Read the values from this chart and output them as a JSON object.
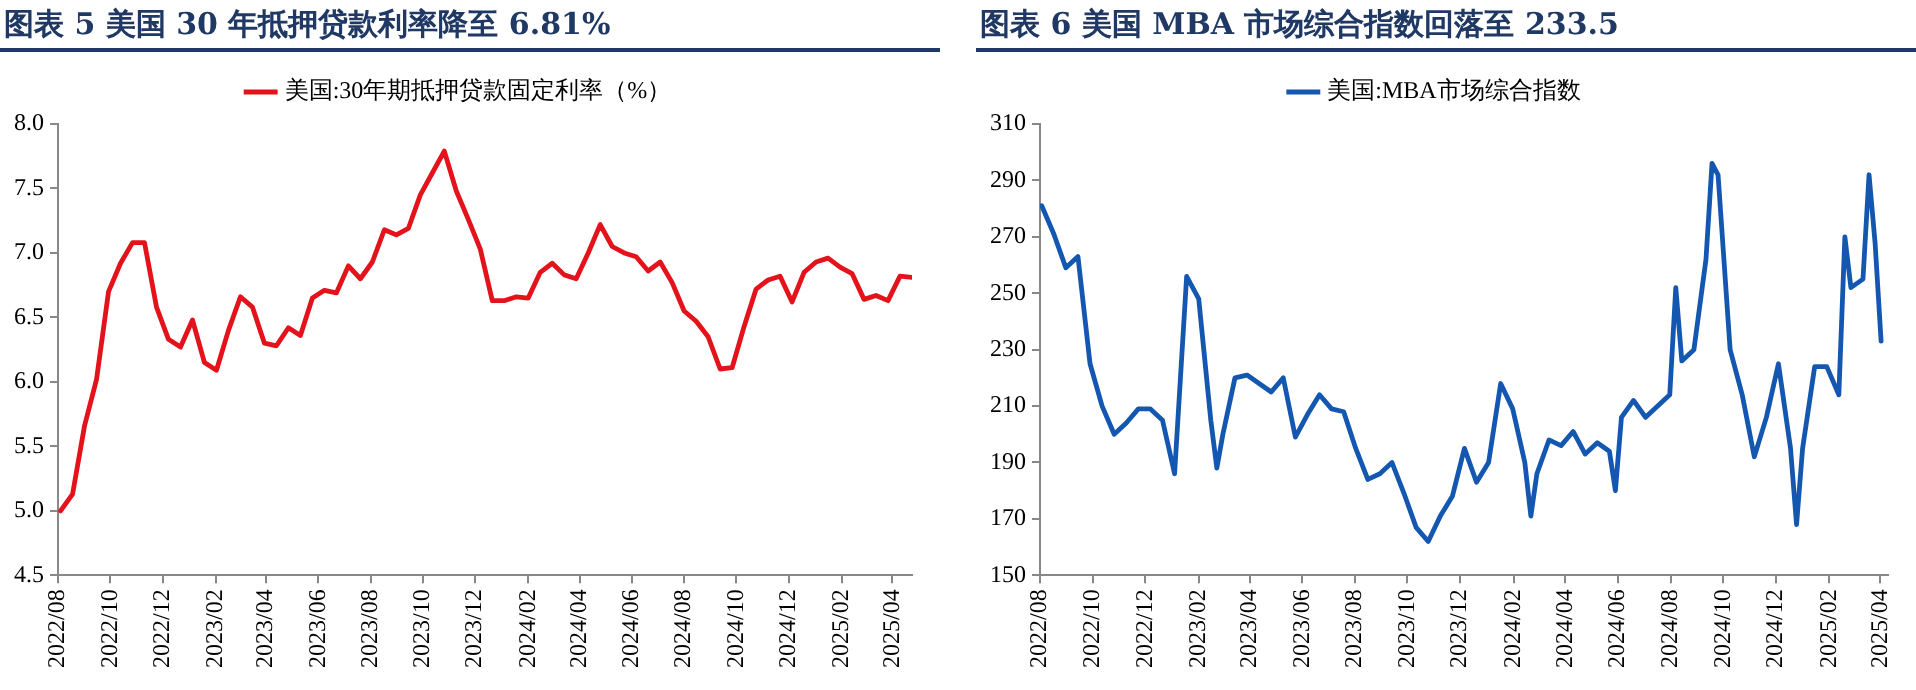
{
  "chart_data": [
    {
      "type": "line",
      "title": "图表 5    美国 30 年抵押贷款利率降至 6.81%",
      "x": [
        "2022-08-04",
        "2022-08-18",
        "2022-09-01",
        "2022-09-15",
        "2022-09-29",
        "2022-10-13",
        "2022-10-27",
        "2022-11-10",
        "2022-11-24",
        "2022-12-08",
        "2022-12-22",
        "2023-01-05",
        "2023-01-19",
        "2023-02-02",
        "2023-02-16",
        "2023-03-02",
        "2023-03-16",
        "2023-03-30",
        "2023-04-13",
        "2023-04-27",
        "2023-05-11",
        "2023-05-25",
        "2023-06-08",
        "2023-06-22",
        "2023-07-06",
        "2023-07-20",
        "2023-08-03",
        "2023-08-17",
        "2023-08-31",
        "2023-09-14",
        "2023-09-28",
        "2023-10-12",
        "2023-10-26",
        "2023-11-09",
        "2023-11-23",
        "2023-12-07",
        "2023-12-21",
        "2024-01-04",
        "2024-01-18",
        "2024-02-01",
        "2024-02-15",
        "2024-02-29",
        "2024-03-14",
        "2024-03-28",
        "2024-04-11",
        "2024-04-25",
        "2024-05-09",
        "2024-05-23",
        "2024-06-06",
        "2024-06-20",
        "2024-07-04",
        "2024-07-18",
        "2024-08-01",
        "2024-08-15",
        "2024-08-29",
        "2024-09-12",
        "2024-09-26",
        "2024-10-10",
        "2024-10-24",
        "2024-11-07",
        "2024-11-21",
        "2024-12-05",
        "2024-12-19",
        "2025-01-02",
        "2025-01-16",
        "2025-01-30",
        "2025-02-13",
        "2025-02-27",
        "2025-03-13",
        "2025-03-27",
        "2025-04-10",
        "2025-04-24"
      ],
      "series": [
        {
          "name": "美国:30年期抵押贷款固定利率（%）",
          "color": "#e3121b",
          "values": [
            5.0,
            5.13,
            5.66,
            6.02,
            6.7,
            6.92,
            7.08,
            7.08,
            6.58,
            6.33,
            6.27,
            6.48,
            6.15,
            6.09,
            6.4,
            6.66,
            6.58,
            6.3,
            6.28,
            6.42,
            6.36,
            6.65,
            6.71,
            6.69,
            6.9,
            6.8,
            6.93,
            7.18,
            7.14,
            7.19,
            7.45,
            7.62,
            7.79,
            7.48,
            7.26,
            7.03,
            6.63,
            6.63,
            6.66,
            6.65,
            6.85,
            6.92,
            6.83,
            6.8,
            7.0,
            7.22,
            7.05,
            7.0,
            6.97,
            6.86,
            6.93,
            6.77,
            6.55,
            6.47,
            6.35,
            6.1,
            6.11,
            6.43,
            6.72,
            6.79,
            6.82,
            6.62,
            6.85,
            6.93,
            6.96,
            6.89,
            6.84,
            6.64,
            6.67,
            6.63,
            6.82,
            6.81
          ]
        }
      ],
      "xlim": [
        "2022-08-01",
        "2025-04-24"
      ],
      "xticks": [
        {
          "value": "2022-08",
          "label": "2022/08"
        },
        {
          "value": "2022-10",
          "label": "2022/10"
        },
        {
          "value": "2022-12",
          "label": "2022/12"
        },
        {
          "value": "2023-02",
          "label": "2023/02"
        },
        {
          "value": "2023-04",
          "label": "2023/04"
        },
        {
          "value": "2023-06",
          "label": "2023/06"
        },
        {
          "value": "2023-08",
          "label": "2023/08"
        },
        {
          "value": "2023-10",
          "label": "2023/10"
        },
        {
          "value": "2023-12",
          "label": "2023/12"
        },
        {
          "value": "2024-02",
          "label": "2024/02"
        },
        {
          "value": "2024-04",
          "label": "2024/04"
        },
        {
          "value": "2024-06",
          "label": "2024/06"
        },
        {
          "value": "2024-08",
          "label": "2024/08"
        },
        {
          "value": "2024-10",
          "label": "2024/10"
        },
        {
          "value": "2024-12",
          "label": "2024/12"
        },
        {
          "value": "2025-02",
          "label": "2025/02"
        },
        {
          "value": "2025-04",
          "label": "2025/04"
        }
      ],
      "ylim": [
        4.5,
        8.0
      ],
      "yticks": [
        {
          "value": 4.5,
          "label": "4.5"
        },
        {
          "value": 5,
          "label": "5.0"
        },
        {
          "value": 5.5,
          "label": "5.5"
        },
        {
          "value": 6,
          "label": "6.0"
        },
        {
          "value": 6.5,
          "label": "6.5"
        },
        {
          "value": 7,
          "label": "7.0"
        },
        {
          "value": 7.5,
          "label": "7.5"
        },
        {
          "value": 8,
          "label": "8.0"
        }
      ],
      "grid": false,
      "legend": "top",
      "marker": "none",
      "line_style": "solid"
    },
    {
      "type": "line",
      "title": "图表 6    美国 MBA 市场综合指数回落至 233.5",
      "x": [
        "2022-08-03",
        "2022-08-17",
        "2022-08-31",
        "2022-09-14",
        "2022-09-28",
        "2022-10-12",
        "2022-10-26",
        "2022-11-09",
        "2022-11-23",
        "2022-12-07",
        "2022-12-21",
        "2023-01-04",
        "2023-01-18",
        "2023-02-01",
        "2023-02-15",
        "2023-02-22",
        "2023-03-01",
        "2023-03-15",
        "2023-03-29",
        "2023-04-12",
        "2023-04-26",
        "2023-05-10",
        "2023-05-24",
        "2023-06-07",
        "2023-06-21",
        "2023-07-05",
        "2023-07-19",
        "2023-08-02",
        "2023-08-16",
        "2023-08-30",
        "2023-09-13",
        "2023-09-27",
        "2023-10-11",
        "2023-10-25",
        "2023-11-08",
        "2023-11-22",
        "2023-12-06",
        "2023-12-20",
        "2024-01-03",
        "2024-01-17",
        "2024-01-31",
        "2024-02-14",
        "2024-02-21",
        "2024-02-28",
        "2024-03-13",
        "2024-03-27",
        "2024-04-10",
        "2024-04-24",
        "2024-05-08",
        "2024-05-22",
        "2024-05-29",
        "2024-06-05",
        "2024-06-19",
        "2024-07-03",
        "2024-07-17",
        "2024-07-31",
        "2024-08-07",
        "2024-08-14",
        "2024-08-28",
        "2024-09-11",
        "2024-09-18",
        "2024-09-25",
        "2024-10-09",
        "2024-10-23",
        "2024-11-06",
        "2024-11-20",
        "2024-12-04",
        "2024-12-18",
        "2024-12-25",
        "2025-01-01",
        "2025-01-15",
        "2025-01-29",
        "2025-02-12",
        "2025-02-19",
        "2025-02-26",
        "2025-03-12",
        "2025-03-19",
        "2025-03-26",
        "2025-04-02"
      ],
      "series": [
        {
          "name": "美国:MBA市场综合指数",
          "color": "#1457b0",
          "values": [
            281,
            271,
            259,
            263,
            225,
            210,
            200,
            204,
            209,
            209,
            205,
            186,
            256,
            248,
            205,
            188,
            200,
            220,
            221,
            218,
            215,
            220,
            199,
            207,
            214,
            209,
            208,
            195,
            184,
            186,
            190,
            179,
            167,
            162,
            171,
            178,
            195,
            183,
            190,
            218,
            209,
            190,
            171,
            186,
            198,
            196,
            201,
            193,
            197,
            194,
            180,
            206,
            212,
            206,
            210,
            214,
            252,
            226,
            230,
            262,
            296,
            292,
            230,
            214,
            192,
            206,
            225,
            195,
            168,
            195,
            224,
            224,
            214,
            270,
            252,
            255,
            292,
            268,
            233
          ]
        }
      ],
      "xlim": [
        "2022-08-01",
        "2025-04-10"
      ],
      "xticks": [
        {
          "value": "2022-08",
          "label": "2022/08"
        },
        {
          "value": "2022-10",
          "label": "2022/10"
        },
        {
          "value": "2022-12",
          "label": "2022/12"
        },
        {
          "value": "2023-02",
          "label": "2023/02"
        },
        {
          "value": "2023-04",
          "label": "2023/04"
        },
        {
          "value": "2023-06",
          "label": "2023/06"
        },
        {
          "value": "2023-08",
          "label": "2023/08"
        },
        {
          "value": "2023-10",
          "label": "2023/10"
        },
        {
          "value": "2023-12",
          "label": "2023/12"
        },
        {
          "value": "2024-02",
          "label": "2024/02"
        },
        {
          "value": "2024-04",
          "label": "2024/04"
        },
        {
          "value": "2024-06",
          "label": "2024/06"
        },
        {
          "value": "2024-08",
          "label": "2024/08"
        },
        {
          "value": "2024-10",
          "label": "2024/10"
        },
        {
          "value": "2024-12",
          "label": "2024/12"
        },
        {
          "value": "2025-02",
          "label": "2025/02"
        },
        {
          "value": "2025-04",
          "label": "2025/04"
        }
      ],
      "ylim": [
        150,
        310
      ],
      "yticks": [
        150,
        170,
        190,
        210,
        230,
        250,
        270,
        290,
        310
      ],
      "grid": false,
      "legend": "top",
      "marker": "none",
      "line_style": "solid"
    }
  ]
}
